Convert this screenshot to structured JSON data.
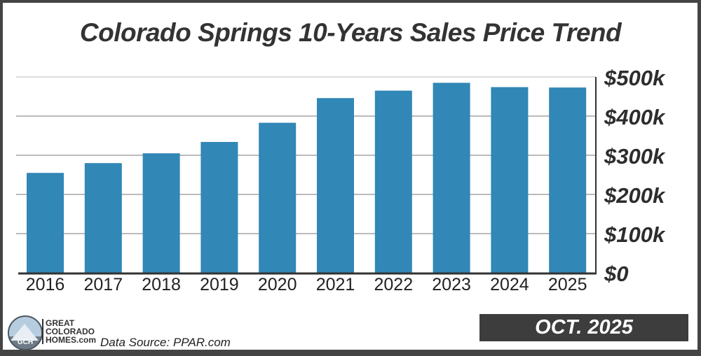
{
  "chart_data": {
    "type": "bar",
    "title": "Colorado Springs 10-Years Sales Price Trend",
    "categories": [
      "2016",
      "2017",
      "2018",
      "2019",
      "2020",
      "2021",
      "2022",
      "2023",
      "2024",
      "2025"
    ],
    "values": [
      255000,
      280000,
      305000,
      334000,
      383000,
      446000,
      465000,
      485000,
      474000,
      473000
    ],
    "ylim": [
      0,
      500000
    ],
    "y_ticks": [
      0,
      100000,
      200000,
      300000,
      400000,
      500000
    ],
    "y_tick_labels": [
      "$0",
      "$100k",
      "$200k",
      "$300k",
      "$400k",
      "$500k"
    ],
    "y_axis_side": "right",
    "grid": true,
    "bar_color": "#3187b6"
  },
  "footer": {
    "brand_lines": [
      "GREAT",
      "COLORADO",
      "HOMES.com"
    ],
    "logo_text": "GCH",
    "source": "Data Source: PPAR.com",
    "date_badge": "OCT. 2025"
  }
}
